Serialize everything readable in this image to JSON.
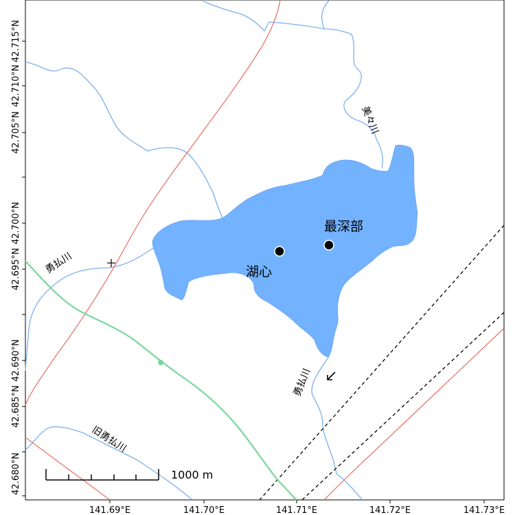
{
  "map": {
    "lake_color": "#73b2ff",
    "river_color": "#7ab0ee",
    "road_color": "#e8766a",
    "green_line_color": "#78d69c",
    "frame_color": "#000000"
  },
  "labels": {
    "deepest_point": "最深部",
    "lake_center": "湖心",
    "river_mimi": "美々川",
    "river_yufutsu_left": "勇払川",
    "river_yufutsu_lower": "勇払川",
    "river_old_yufutsu": "旧勇払川"
  },
  "scale_bar": {
    "label": "1000 m"
  },
  "axes": {
    "x_ticks": [
      "141.69°E",
      "141.70°E",
      "141.71°E",
      "141.72°E",
      "141.73°E"
    ],
    "y_ticks": [
      "42.715°N",
      "42.710°N",
      "42.705°N",
      "42.700°N",
      "42.695°N",
      "42.690°N",
      "42.685°N",
      "42.680°N"
    ]
  },
  "points": [
    {
      "name": "deepest_point"
    },
    {
      "name": "lake_center"
    }
  ]
}
